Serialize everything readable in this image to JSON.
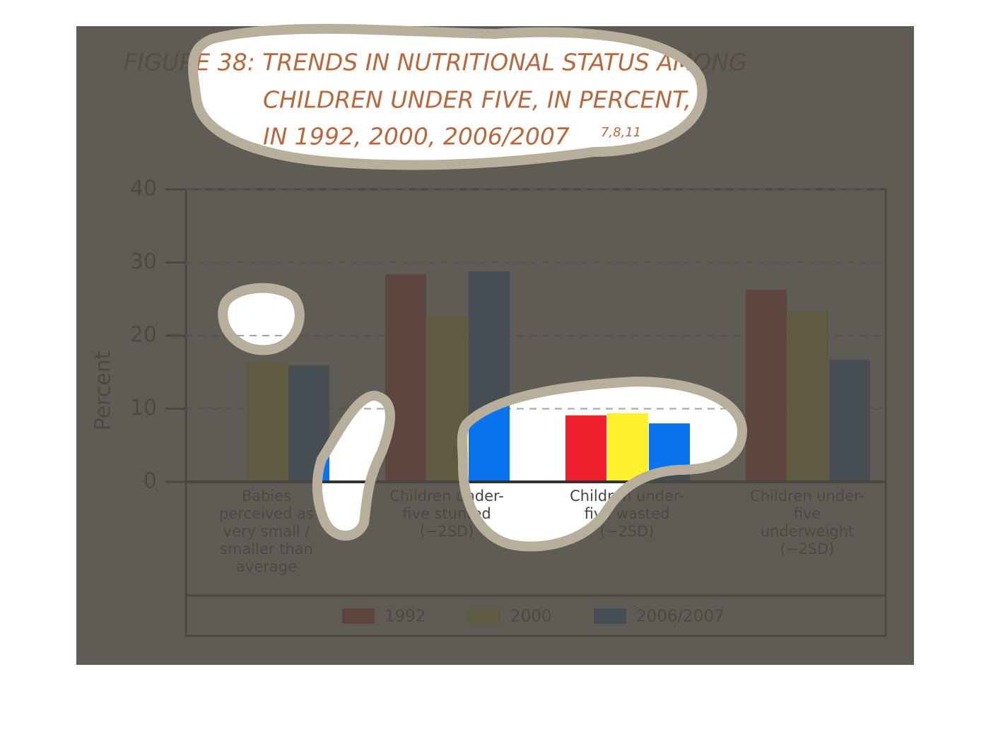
{
  "chart_data": {
    "type": "bar",
    "title": [
      "FIGURE 38: TRENDS IN NUTRITIONAL STATUS AMONG",
      "CHILDREN UNDER FIVE, IN PERCENT,",
      "IN 1992, 2000, 2006/2007"
    ],
    "title_superscript": "7,8,11",
    "y_label": "Percent",
    "categories": [
      "Babies perceived as very small / smaller than average",
      "Children under-five stunted (−2SD)",
      "Children under-five wasted (−2SD)",
      "Children under-five underweight (−2SD)"
    ],
    "series": [
      {
        "name": "1992",
        "color": "#f0202e",
        "values": [
          null,
          28.4,
          9.1,
          26.3
        ]
      },
      {
        "name": "2000",
        "color": "#fff22c",
        "values": [
          16.3,
          22.5,
          9.4,
          23.3
        ]
      },
      {
        "name": "2006/2007",
        "color": "#0a74ee",
        "values": [
          15.9,
          28.8,
          8.0,
          16.7
        ]
      }
    ],
    "ylim": [
      0,
      40
    ],
    "yticks": [
      0,
      10,
      20,
      30,
      40
    ],
    "grid": true
  }
}
